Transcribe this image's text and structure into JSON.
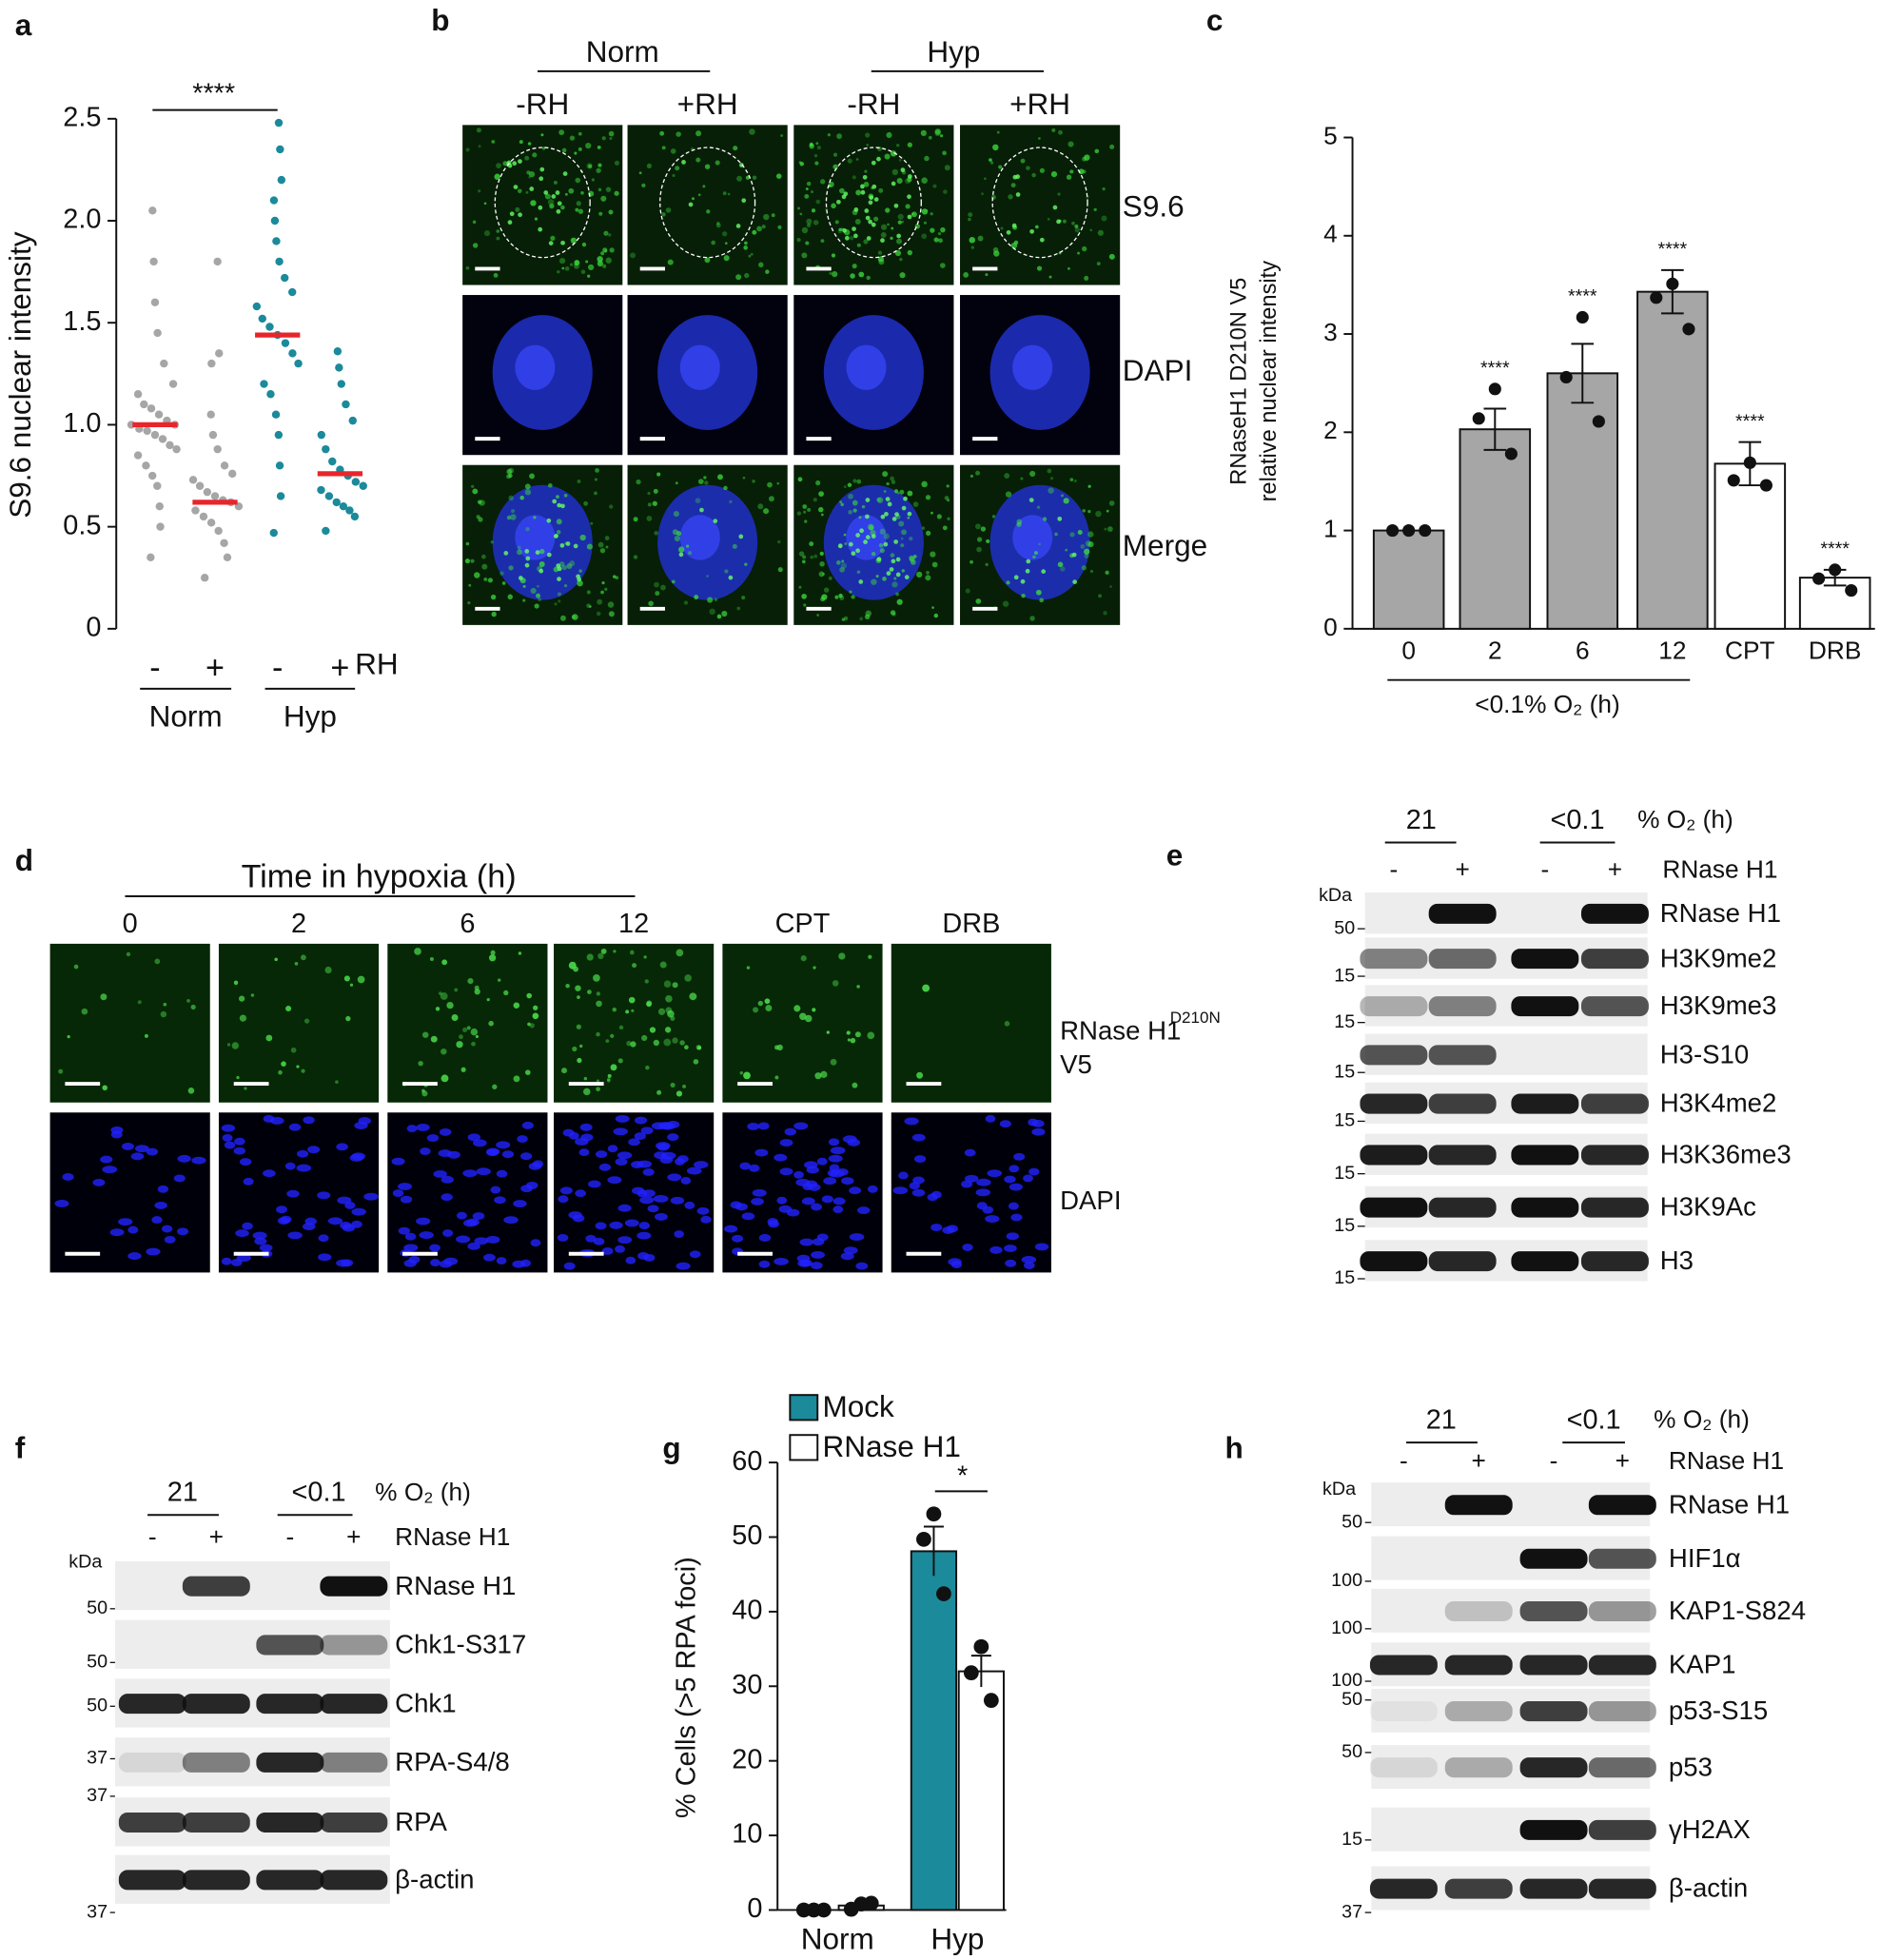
{
  "panel_labels": [
    "a",
    "b",
    "c",
    "d",
    "e",
    "f",
    "g",
    "h"
  ],
  "chart_data": [
    {
      "type": "strip",
      "ylabel": "S9.6 nuclear intensity",
      "ylim": [
        0,
        2.5
      ],
      "yticks": [
        0,
        0.5,
        {
          "value": 1,
          "label": "1.0"
        },
        1.5,
        {
          "value": 2,
          "label": "2.0"
        },
        2.5
      ],
      "categories": [
        "-",
        "+",
        "-",
        "+"
      ],
      "category_suffix": "RH",
      "groups": [
        "Norm",
        "Hyp"
      ],
      "significance": "****",
      "colors": [
        "#a6a6a6",
        "#a6a6a6",
        "#1b8a9a",
        "#1b8a9a"
      ],
      "median_color": "#e8252b",
      "medians": [
        1.0,
        0.62,
        1.44,
        0.76
      ],
      "points": [
        [
          0.35,
          0.5,
          0.6,
          0.7,
          0.75,
          0.8,
          0.85,
          0.88,
          0.9,
          0.93,
          0.95,
          0.97,
          0.98,
          1.0,
          1.0,
          1.02,
          1.05,
          1.08,
          1.1,
          1.15,
          1.2,
          1.3,
          1.45,
          1.6,
          1.8,
          2.05
        ],
        [
          0.25,
          0.35,
          0.42,
          0.48,
          0.52,
          0.55,
          0.58,
          0.6,
          0.62,
          0.63,
          0.65,
          0.67,
          0.7,
          0.73,
          0.76,
          0.8,
          0.88,
          0.95,
          1.05,
          1.3,
          1.35,
          1.8
        ],
        [
          0.47,
          0.65,
          0.8,
          0.95,
          1.05,
          1.15,
          1.2,
          1.3,
          1.35,
          1.4,
          1.44,
          1.48,
          1.52,
          1.58,
          1.65,
          1.72,
          1.8,
          1.9,
          2.0,
          2.1,
          2.2,
          2.35,
          2.48
        ],
        [
          0.48,
          0.55,
          0.58,
          0.6,
          0.62,
          0.65,
          0.68,
          0.7,
          0.72,
          0.75,
          0.78,
          0.82,
          0.88,
          0.95,
          1.02,
          1.1,
          1.2,
          1.28,
          1.36
        ]
      ]
    },
    {
      "type": "bar",
      "ylabel": [
        "RNaseH1 D210N V5",
        "relative nuclear intensity"
      ],
      "ylim": [
        0,
        5
      ],
      "yticks": [
        0,
        1,
        2,
        3,
        4,
        5
      ],
      "categories": [
        "0",
        "2",
        "6",
        "12",
        "CPT",
        "DRB"
      ],
      "values": [
        1,
        2.03,
        2.6,
        3.43,
        1.68,
        0.52
      ],
      "errors": [
        0,
        0.21,
        0.3,
        0.22,
        0.22,
        0.08
      ],
      "points": [
        [
          1,
          1,
          1
        ],
        [
          2.44,
          2.14,
          1.78
        ],
        [
          3.17,
          2.56,
          2.11
        ],
        [
          3.51,
          3.37,
          3.05
        ],
        [
          1.69,
          1.51,
          1.46
        ],
        [
          0.6,
          0.51,
          0.39
        ]
      ],
      "colors": [
        "#a6a6a6",
        "#a6a6a6",
        "#a6a6a6",
        "#a6a6a6",
        "#ffffff",
        "#ffffff"
      ],
      "significance": [
        null,
        "****",
        "****",
        "****",
        "****",
        "****"
      ],
      "bracket_label": "<0.1% O₂ (h)"
    },
    {
      "type": "grouped_bar",
      "ylabel": "% Cells (>5 RPA foci)",
      "ylim": [
        0,
        60
      ],
      "yticks": [
        0,
        10,
        20,
        30,
        40,
        50,
        60
      ],
      "categories": [
        "Norm",
        "Hyp"
      ],
      "significance": "*",
      "series": [
        {
          "name": "Mock",
          "color": "#1b8a9a",
          "values": [
            0,
            48.1
          ],
          "errors": [
            0,
            3.3
          ],
          "points": [
            [
              0,
              0,
              0
            ],
            [
              53.1,
              49.7,
              42.4
            ]
          ]
        },
        {
          "name": "RNase H1",
          "color": "#ffffff",
          "values": [
            0.6,
            32
          ],
          "errors": [
            0.3,
            2.1
          ],
          "points": [
            [
              0.1,
              0.8,
              0.9
            ],
            [
              35.3,
              31.8,
              28.1
            ]
          ]
        }
      ]
    }
  ],
  "panel_b": {
    "groups": [
      "Norm",
      "Hyp"
    ],
    "columns": [
      "-RH",
      "+RH",
      "-RH",
      "+RH"
    ],
    "rows": [
      "S9.6",
      "DAPI",
      "Merge"
    ]
  },
  "panel_d": {
    "title": "Time in hypoxia (h)",
    "columns": [
      "0",
      "2",
      "6",
      "12",
      "CPT",
      "DRB"
    ],
    "channel1": "RNase H1",
    "channel1_sup": "D210N",
    "channel1_line2": "V5",
    "channel2": "DAPI"
  },
  "blots": {
    "e": {
      "o2_groups": [
        "21",
        "<0.1"
      ],
      "o2_label": "% O₂ (h)",
      "signs": [
        "-",
        "+",
        "-",
        "+"
      ],
      "treatment": "RNase H1",
      "kda": "kDa",
      "rows": [
        {
          "label": "RNase H1",
          "marker": "50"
        },
        {
          "label": "H3K9me2",
          "marker": "15"
        },
        {
          "label": "H3K9me3",
          "marker": "15"
        },
        {
          "label": "H3-S10",
          "marker": "15"
        },
        {
          "label": "H3K4me2",
          "marker": "15"
        },
        {
          "label": "H3K36me3",
          "marker": "15"
        },
        {
          "label": "H3K9Ac",
          "marker": "15"
        },
        {
          "label": "H3",
          "marker": "15"
        }
      ]
    },
    "f": {
      "o2_groups": [
        "21",
        "<0.1"
      ],
      "o2_label": "% O₂ (h)",
      "signs": [
        "-",
        "+",
        "-",
        "+"
      ],
      "treatment": "RNase H1",
      "kda": "kDa",
      "rows": [
        {
          "label": "RNase H1",
          "marker": "50"
        },
        {
          "label": "Chk1-S317",
          "marker": "50"
        },
        {
          "label": "Chk1",
          "marker": "50"
        },
        {
          "label": "RPA-S4/8",
          "marker": "37"
        },
        {
          "label": "RPA",
          "marker": "37"
        },
        {
          "label": "β-actin",
          "marker": "37"
        }
      ]
    },
    "h": {
      "o2_groups": [
        "21",
        "<0.1"
      ],
      "o2_label": "% O₂ (h)",
      "signs": [
        "-",
        "+",
        "-",
        "+"
      ],
      "treatment": "RNase H1",
      "kda": "kDa",
      "rows": [
        {
          "label": "RNase H1",
          "marker": "50"
        },
        {
          "label": "HIF1α",
          "marker": "100"
        },
        {
          "label": "KAP1-S824",
          "marker": "100"
        },
        {
          "label": "KAP1",
          "marker": "100"
        },
        {
          "label": "p53-S15",
          "marker": "50"
        },
        {
          "label": "p53",
          "marker": "50"
        },
        {
          "label": "γH2AX",
          "marker": "15"
        },
        {
          "label": "β-actin",
          "marker": "37"
        }
      ]
    }
  }
}
